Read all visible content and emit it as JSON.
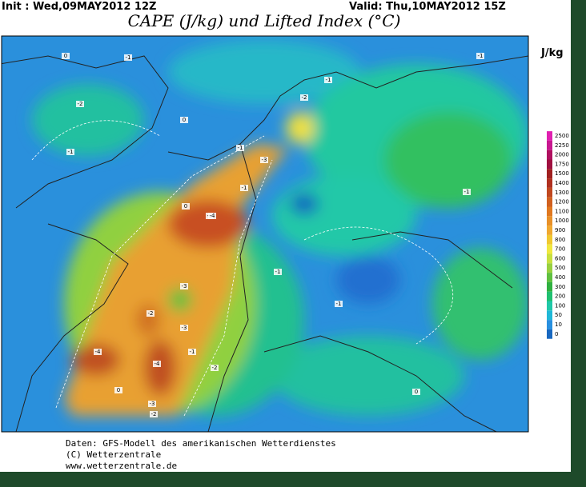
{
  "header": {
    "init": "Init : Wed,09MAY2012 12Z",
    "valid": "Valid: Thu,10MAY2012 15Z",
    "title": "CAPE (J/kg) und Lifted Index (°C)"
  },
  "colorbar": {
    "unit": "J/kg",
    "levels": [
      2500,
      2250,
      2000,
      1750,
      1500,
      1400,
      1300,
      1200,
      1100,
      1000,
      900,
      800,
      700,
      600,
      500,
      400,
      300,
      200,
      100,
      50,
      10,
      0
    ],
    "colors": [
      "#e020b0",
      "#c81890",
      "#b01060",
      "#a01040",
      "#a02020",
      "#b03020",
      "#c04820",
      "#d06020",
      "#e07820",
      "#e89028",
      "#f0a830",
      "#f0c830",
      "#f0e840",
      "#c8e040",
      "#98d040",
      "#60c040",
      "#30b040",
      "#20c070",
      "#20c8a8",
      "#20b8d8",
      "#2890e0",
      "#1868c0"
    ]
  },
  "contour_labels": [
    "0",
    "-1",
    "-2",
    "-1",
    "0",
    "-1",
    "-2",
    "-1",
    "-3",
    "-4",
    "-3",
    "-2",
    "-4",
    "-3",
    "-4",
    "-3",
    "-2",
    "-1",
    "0",
    "-1",
    "-1",
    "-2",
    "0",
    "-1",
    "-2",
    "-1",
    "0",
    "-1"
  ],
  "footer": {
    "source": "Daten: GFS-Modell des amerikanischen Wetterdienstes",
    "copyright": "(C) Wetterzentrale",
    "url": "www.wetterzentrale.de"
  }
}
